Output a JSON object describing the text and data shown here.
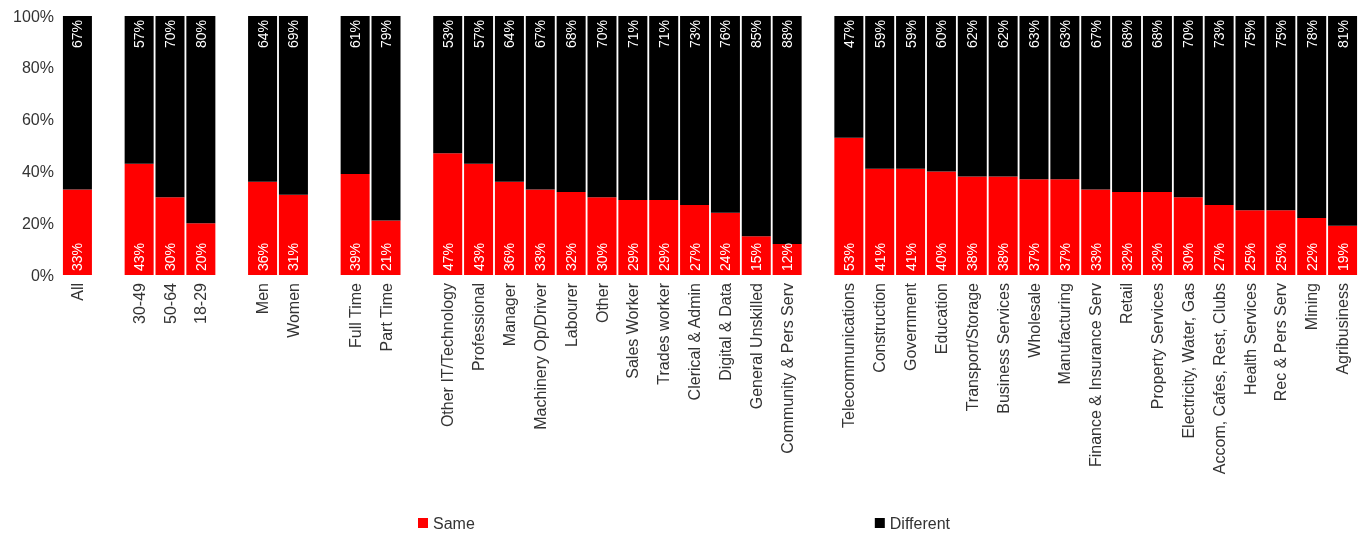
{
  "chart_data": {
    "type": "bar",
    "stacked": true,
    "categories": [
      "All",
      null,
      "30-49",
      "50-64",
      "18-29",
      null,
      "Men",
      "Women",
      null,
      "Full Time",
      "Part Time",
      null,
      "Other IT/Technology",
      "Professional",
      "Manager",
      "Machinery Op/Driver",
      "Labourer",
      "Other",
      "Sales Worker",
      "Trades worker",
      "Clerical & Admin",
      "Digital & Data",
      "General Unskilled",
      "Community & Pers Serv",
      null,
      "Telecommunications",
      "Construction",
      "Government",
      "Education",
      "Transport/Storage",
      "Business Services",
      "Wholesale",
      "Manufacturing",
      "Finance & Insurance Serv",
      "Retail",
      "Property Services",
      "Electricity, Water, Gas",
      "Accom, Cafes, Rest, Clubs",
      "Health Services",
      "Rec & Pers Serv",
      "Mining",
      "Agribusiness"
    ],
    "series": [
      {
        "name": "Same",
        "color": "#ff0000",
        "values": [
          33,
          null,
          43,
          30,
          20,
          null,
          36,
          31,
          null,
          39,
          21,
          null,
          47,
          43,
          36,
          33,
          32,
          30,
          29,
          29,
          27,
          24,
          15,
          12,
          null,
          53,
          41,
          41,
          40,
          38,
          38,
          37,
          37,
          33,
          32,
          32,
          30,
          27,
          25,
          25,
          22,
          19
        ],
        "value_labels": [
          "33%",
          null,
          "43%",
          "30%",
          "20%",
          null,
          "36%",
          "31%",
          null,
          "39%",
          "21%",
          null,
          "47%",
          "43%",
          "36%",
          "33%",
          "32%",
          "30%",
          "29%",
          "29%",
          "27%",
          "24%",
          "15%",
          "12%",
          null,
          "53%",
          "41%",
          "41%",
          "40%",
          "38%",
          "38%",
          "37%",
          "37%",
          "33%",
          "32%",
          "32%",
          "30%",
          "27%",
          "25%",
          "25%",
          "22%",
          "19%"
        ]
      },
      {
        "name": "Different",
        "color": "#000000",
        "values": [
          67,
          null,
          57,
          70,
          80,
          null,
          64,
          69,
          null,
          61,
          79,
          null,
          53,
          57,
          64,
          67,
          68,
          70,
          71,
          71,
          73,
          76,
          85,
          88,
          null,
          47,
          59,
          59,
          60,
          62,
          62,
          63,
          63,
          67,
          68,
          68,
          70,
          73,
          75,
          75,
          78,
          81
        ],
        "value_labels": [
          "67%",
          null,
          "57%",
          "70%",
          "80%",
          null,
          "64%",
          "69%",
          null,
          "61%",
          "79%",
          null,
          "53%",
          "57%",
          "64%",
          "67%",
          "68%",
          "70%",
          "71%",
          "71%",
          "73%",
          "76%",
          "85%",
          "88%",
          null,
          "47%",
          "59%",
          "59%",
          "60%",
          "62%",
          "62%",
          "63%",
          "63%",
          "67%",
          "68%",
          "68%",
          "70%",
          "73%",
          "75%",
          "75%",
          "78%",
          "81%"
        ]
      }
    ],
    "ylim": [
      0,
      100
    ],
    "yticks": [
      {
        "value": 0,
        "label": "0%"
      },
      {
        "value": 20,
        "label": "20%"
      },
      {
        "value": 40,
        "label": "40%"
      },
      {
        "value": 60,
        "label": "60%"
      },
      {
        "value": 80,
        "label": "80%"
      },
      {
        "value": 100,
        "label": "100%"
      }
    ],
    "grid": false,
    "legend": "bottom"
  }
}
